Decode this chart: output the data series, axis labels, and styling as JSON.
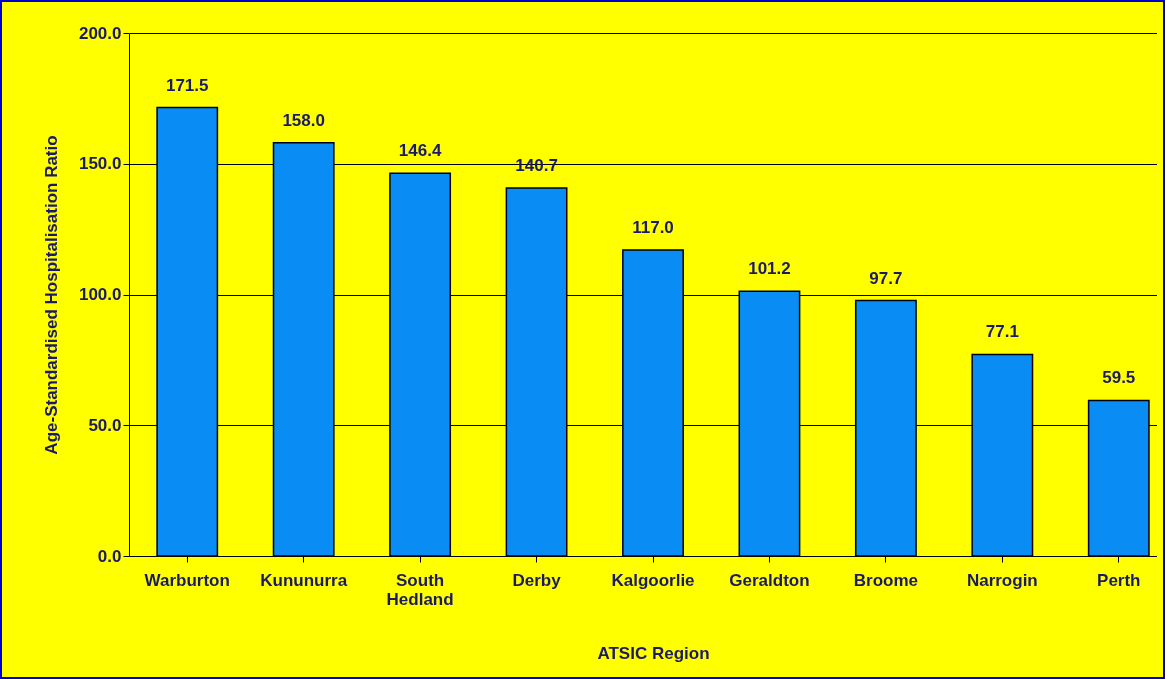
{
  "chart_data": {
    "type": "bar",
    "xlabel": "ATSIC Region",
    "ylabel": "Age-Standardised Hospitalisation Ratio",
    "categories": [
      "Warburton",
      "Kununurra",
      "South Hedland",
      "Derby",
      "Kalgoorlie",
      "Geraldton",
      "Broome",
      "Narrogin",
      "Perth"
    ],
    "values": [
      171.5,
      158.0,
      146.4,
      140.7,
      117.0,
      101.2,
      97.7,
      77.1,
      59.5
    ],
    "color": "#0a8cf5",
    "ylim": [
      0,
      200
    ],
    "yticks": [
      {
        "value": 0,
        "label": "0.0"
      },
      {
        "value": 50,
        "label": "50.0"
      },
      {
        "value": 100,
        "label": "100.0"
      },
      {
        "value": 150,
        "label": "150.0"
      },
      {
        "value": 200,
        "label": "200.0"
      }
    ],
    "value_labels": [
      "171.5",
      "158.0",
      "146.4",
      "140.7",
      "117.0",
      "101.2",
      "97.7",
      "77.1",
      "59.5"
    ],
    "grid": "y"
  }
}
